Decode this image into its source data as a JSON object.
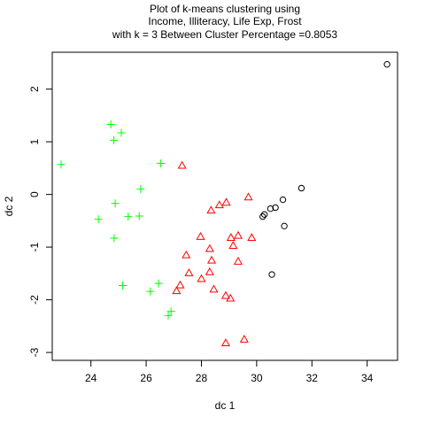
{
  "chart_data": {
    "type": "scatter",
    "title": [
      "Plot of k-means clustering using",
      "Income, Illiteracy, Life Exp, Frost",
      "with  k = 3 Between Cluster Percentage =0.8053"
    ],
    "xlabel": "dc 1",
    "ylabel": "dc 2",
    "xlim": [
      22.6,
      35.1
    ],
    "ylim": [
      -3.15,
      2.7
    ],
    "x_ticks": [
      24,
      26,
      28,
      30,
      32,
      34
    ],
    "y_ticks": [
      2,
      1,
      0,
      -1,
      -2,
      -3
    ],
    "grid": false,
    "series": [
      {
        "marker": "circle",
        "color": "#000000",
        "points": [
          [
            34.72,
            2.47
          ],
          [
            31.62,
            0.12
          ],
          [
            30.95,
            -0.1
          ],
          [
            30.68,
            -0.25
          ],
          [
            30.5,
            -0.27
          ],
          [
            30.28,
            -0.38
          ],
          [
            30.22,
            -0.42
          ],
          [
            31.0,
            -0.6
          ],
          [
            30.55,
            -1.52
          ]
        ]
      },
      {
        "marker": "triangle",
        "color": "#ff0000",
        "points": [
          [
            27.3,
            0.55
          ],
          [
            29.7,
            -0.05
          ],
          [
            28.9,
            -0.15
          ],
          [
            28.65,
            -0.2
          ],
          [
            28.35,
            -0.3
          ],
          [
            27.97,
            -0.8
          ],
          [
            29.07,
            -0.82
          ],
          [
            29.33,
            -0.78
          ],
          [
            29.82,
            -0.82
          ],
          [
            29.15,
            -0.97
          ],
          [
            28.3,
            -1.03
          ],
          [
            27.45,
            -1.15
          ],
          [
            28.37,
            -1.25
          ],
          [
            29.33,
            -1.27
          ],
          [
            28.3,
            -1.47
          ],
          [
            27.55,
            -1.49
          ],
          [
            28.0,
            -1.6
          ],
          [
            27.23,
            -1.72
          ],
          [
            27.1,
            -1.83
          ],
          [
            28.45,
            -1.8
          ],
          [
            28.88,
            -1.92
          ],
          [
            29.05,
            -1.97
          ],
          [
            29.55,
            -2.75
          ],
          [
            28.88,
            -2.82
          ]
        ]
      },
      {
        "marker": "plus",
        "color": "#00ff00",
        "points": [
          [
            24.72,
            1.33
          ],
          [
            25.1,
            1.17
          ],
          [
            24.83,
            1.03
          ],
          [
            22.92,
            0.57
          ],
          [
            26.53,
            0.59
          ],
          [
            25.8,
            0.1
          ],
          [
            24.88,
            -0.17
          ],
          [
            25.75,
            -0.41
          ],
          [
            25.35,
            -0.42
          ],
          [
            24.27,
            -0.47
          ],
          [
            24.84,
            -0.83
          ],
          [
            25.15,
            -1.73
          ],
          [
            26.45,
            -1.69
          ],
          [
            26.15,
            -1.84
          ],
          [
            26.9,
            -2.22
          ],
          [
            26.8,
            -2.3
          ]
        ]
      }
    ]
  }
}
